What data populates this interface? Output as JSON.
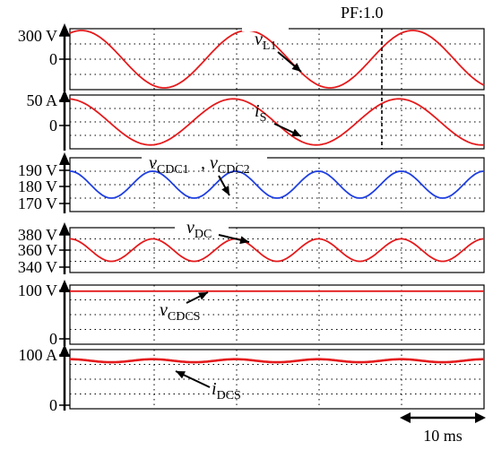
{
  "chart_data": {
    "type": "line",
    "time_scale_label": "10 ms",
    "pf_label": "PF:1.0",
    "colors": {
      "red": "#e41a1c",
      "blue": "#1f3fe0",
      "grid": "#000000"
    },
    "panels": [
      {
        "id": "vL1",
        "ticks": [
          {
            "label": "300 V",
            "value": 300
          },
          {
            "label": "0",
            "value": 0
          }
        ],
        "ylim": [
          -340,
          340
        ],
        "series": [
          {
            "label_main": "v",
            "label_sub": "L1",
            "color": "#e41a1c",
            "waveform": "sine",
            "offset": 0,
            "amplitude": 320,
            "period_ms": 20,
            "phase_deg": 65
          }
        ]
      },
      {
        "id": "iS",
        "ticks": [
          {
            "label": "50 A",
            "value": 50
          },
          {
            "label": "0",
            "value": 0
          }
        ],
        "ylim": [
          -70,
          70
        ],
        "series": [
          {
            "label_main": "i",
            "label_sub": "S",
            "color": "#e41a1c",
            "waveform": "sine",
            "offset": 0,
            "amplitude": 60,
            "period_ms": 20,
            "phase_deg": 95
          }
        ]
      },
      {
        "id": "vCDC",
        "ticks": [
          {
            "label": "190 V",
            "value": 190
          },
          {
            "label": "180 V",
            "value": 180
          },
          {
            "label": "170 V",
            "value": 170
          }
        ],
        "ylim": [
          166,
          194
        ],
        "series": [
          {
            "label_main": "v",
            "label_sub": "CDC1",
            "label_main2": "v",
            "label_sub2": "CDC2",
            "color": "#1f3fe0",
            "waveform": "sine",
            "offset": 180,
            "amplitude": 7,
            "period_ms": 10,
            "phase_deg": 90
          }
        ]
      },
      {
        "id": "vDC",
        "ticks": [
          {
            "label": "380 V",
            "value": 380
          },
          {
            "label": "360 V",
            "value": 360
          },
          {
            "label": "340 V",
            "value": 340
          }
        ],
        "ylim": [
          332,
          388
        ],
        "series": [
          {
            "label_main": "v",
            "label_sub": "DC",
            "color": "#e41a1c",
            "waveform": "sine",
            "offset": 360,
            "amplitude": 14,
            "period_ms": 10,
            "phase_deg": 90
          }
        ]
      },
      {
        "id": "vCDCS",
        "ticks": [
          {
            "label": "100 V",
            "value": 100
          },
          {
            "label": "0",
            "value": 0
          }
        ],
        "ylim": [
          -5,
          112
        ],
        "series": [
          {
            "label_main": "v",
            "label_sub": "CDCS",
            "color": "#e41a1c",
            "waveform": "constant",
            "offset": 100,
            "amplitude": 0,
            "period_ms": 10,
            "phase_deg": 0
          }
        ]
      },
      {
        "id": "iDCS",
        "ticks": [
          {
            "label": "100 A",
            "value": 100
          },
          {
            "label": "0",
            "value": 0
          }
        ],
        "ylim": [
          -5,
          112
        ],
        "series": [
          {
            "label_main": "i",
            "label_sub": "DCS",
            "color": "#e41a1c",
            "waveform": "sine",
            "offset": 90,
            "amplitude": 3,
            "period_ms": 10,
            "phase_deg": 90
          }
        ]
      }
    ],
    "time_window_ms": 50,
    "grid": true
  }
}
